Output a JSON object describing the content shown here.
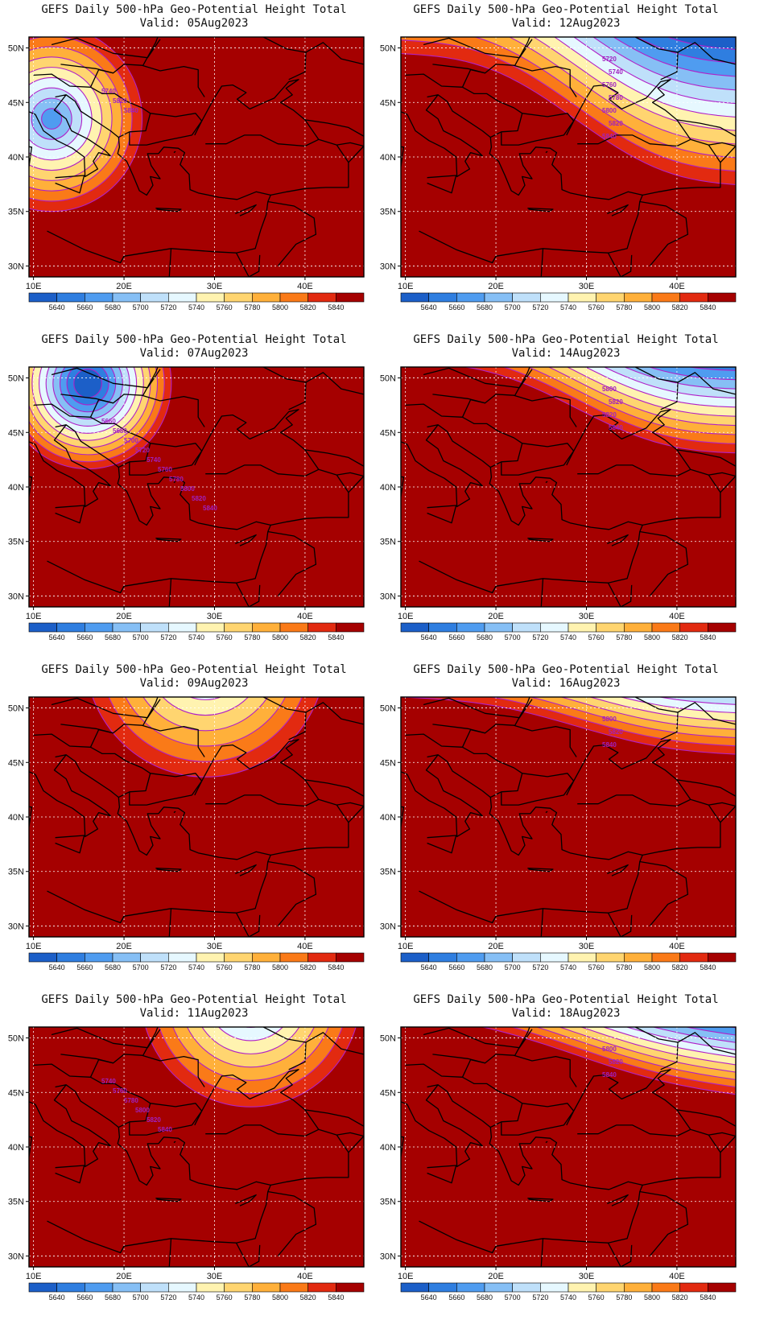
{
  "figure": {
    "title": "GEFS Daily 500-hPa Geo-Potential Height Total",
    "valid_prefix": "Valid:"
  },
  "panels": [
    {
      "valid": "05Aug2023",
      "pattern": "trough",
      "cx": 12,
      "cy": 43.5,
      "base": 5660,
      "rate": 18,
      "contour_labels": [
        "5740",
        "5820",
        "5840"
      ]
    },
    {
      "valid": "12Aug2023",
      "pattern": "band",
      "y0": 53,
      "tilt": -0.32,
      "amp": 1.6,
      "k": 0.62,
      "base": 5690,
      "contour_labels": [
        "5720",
        "5740",
        "5760",
        "5780",
        "5800",
        "5820",
        "5840"
      ]
    },
    {
      "valid": "07Aug2023",
      "pattern": "trough",
      "cx": 16,
      "cy": 49.5,
      "base": 5600,
      "rate": 26,
      "contour_labels": [
        "5660",
        "5680",
        "5700",
        "5720",
        "5740",
        "5760",
        "5780",
        "5800",
        "5820",
        "5840"
      ]
    },
    {
      "valid": "14Aug2023",
      "pattern": "band",
      "y0": 51,
      "tilt": -0.22,
      "amp": 1.2,
      "k": 0.42,
      "base": 5755,
      "contour_labels": [
        "5800",
        "5820",
        "5820",
        "5840"
      ]
    },
    {
      "valid": "09Aug2023",
      "pattern": "trough",
      "cx": 29,
      "cy": 55,
      "base": 5680,
      "rate": 12,
      "contour_labels": []
    },
    {
      "valid": "16Aug2023",
      "pattern": "band",
      "y0": 51.5,
      "tilt": -0.14,
      "amp": 0.6,
      "k": 0.38,
      "base": 5760,
      "contour_labels": [
        "5800",
        "5820",
        "5840"
      ]
    },
    {
      "valid": "11Aug2023",
      "pattern": "trough",
      "cx": 34,
      "cy": 54,
      "base": 5670,
      "rate": 14,
      "contour_labels": [
        "5740",
        "5760",
        "5780",
        "5800",
        "5820",
        "5840"
      ]
    },
    {
      "valid": "18Aug2023",
      "pattern": "band",
      "y0": 51,
      "tilt": -0.2,
      "amp": 0.5,
      "k": 0.34,
      "base": 5770,
      "contour_labels": [
        "5800",
        "5820",
        "5840"
      ]
    }
  ],
  "axes": {
    "x_ticks": [
      "10E",
      "20E",
      "30E",
      "40E"
    ],
    "x_values": [
      10,
      20,
      30,
      40
    ],
    "y_ticks": [
      "50N",
      "45N",
      "40N",
      "35N",
      "30N"
    ],
    "y_values": [
      50,
      45,
      40,
      35,
      30
    ],
    "lon_range": [
      9.5,
      46.5
    ],
    "lat_range": [
      29,
      51
    ]
  },
  "colorbar": {
    "levels": [
      "5640",
      "5660",
      "5680",
      "5700",
      "5720",
      "5740",
      "5760",
      "5780",
      "5800",
      "5820",
      "5840"
    ],
    "colors": [
      "#1c5fc8",
      "#2f7ee0",
      "#4f9cf0",
      "#86bff5",
      "#bfe0fa",
      "#e6f8ff",
      "#fff3b0",
      "#ffd570",
      "#ffb03a",
      "#fa7a18",
      "#e22a10",
      "#a50000"
    ]
  },
  "colors": {
    "contour": "#b020c8",
    "coastline": "#000000",
    "grid": "#ffffff"
  }
}
